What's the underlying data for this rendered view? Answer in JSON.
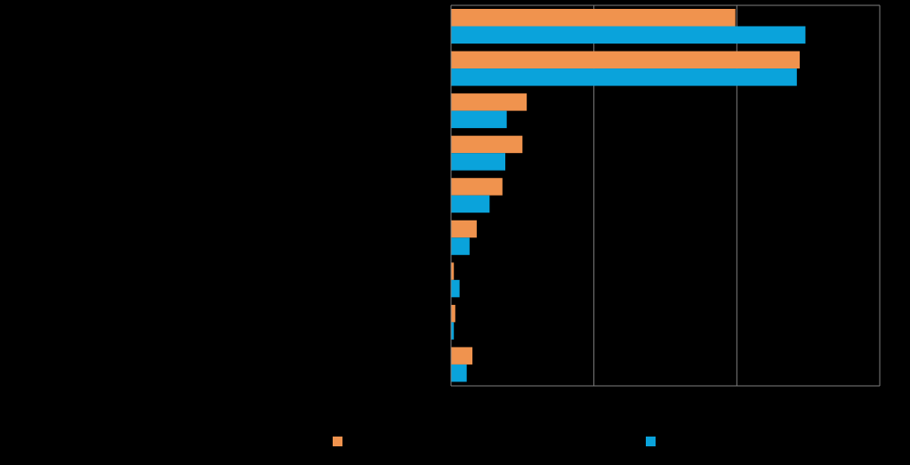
{
  "chart_data": {
    "type": "bar",
    "orientation": "horizontal",
    "title": "",
    "xlabel": "",
    "ylabel": "",
    "categories": [
      "",
      "",
      "",
      "",
      "",
      "",
      "",
      "",
      ""
    ],
    "xlim": [
      0,
      3
    ],
    "x_gridlines": [
      1,
      2,
      3
    ],
    "grid": true,
    "legend_position": "bottom",
    "series": [
      {
        "color": "#F0934E",
        "values": [
          1.99,
          2.44,
          0.53,
          0.5,
          0.36,
          0.18,
          0.02,
          0.03,
          0.15
        ]
      },
      {
        "color": "#0AA3DB",
        "values": [
          2.48,
          2.42,
          0.39,
          0.38,
          0.27,
          0.13,
          0.06,
          0.02,
          0.11
        ]
      }
    ]
  }
}
